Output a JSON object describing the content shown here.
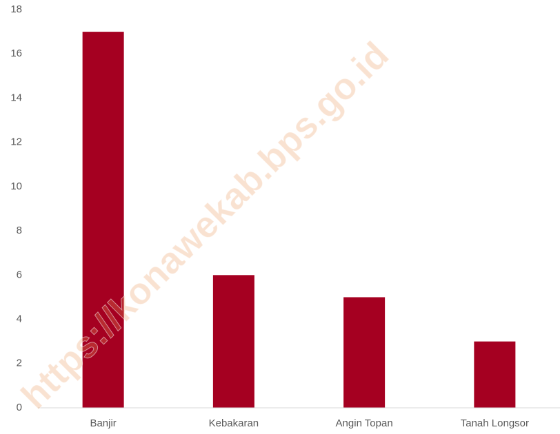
{
  "chart_data": {
    "type": "bar",
    "categories": [
      "Banjir",
      "Kebakaran",
      "Angin Topan",
      "Tanah Longsor"
    ],
    "values": [
      17,
      6,
      5,
      3
    ],
    "color": "#a50021",
    "ylim": [
      0,
      18
    ],
    "yticks": [
      0,
      2,
      4,
      6,
      8,
      10,
      12,
      14,
      16,
      18
    ],
    "grid": false,
    "watermark": "https://konawekab.bps.go.id"
  }
}
